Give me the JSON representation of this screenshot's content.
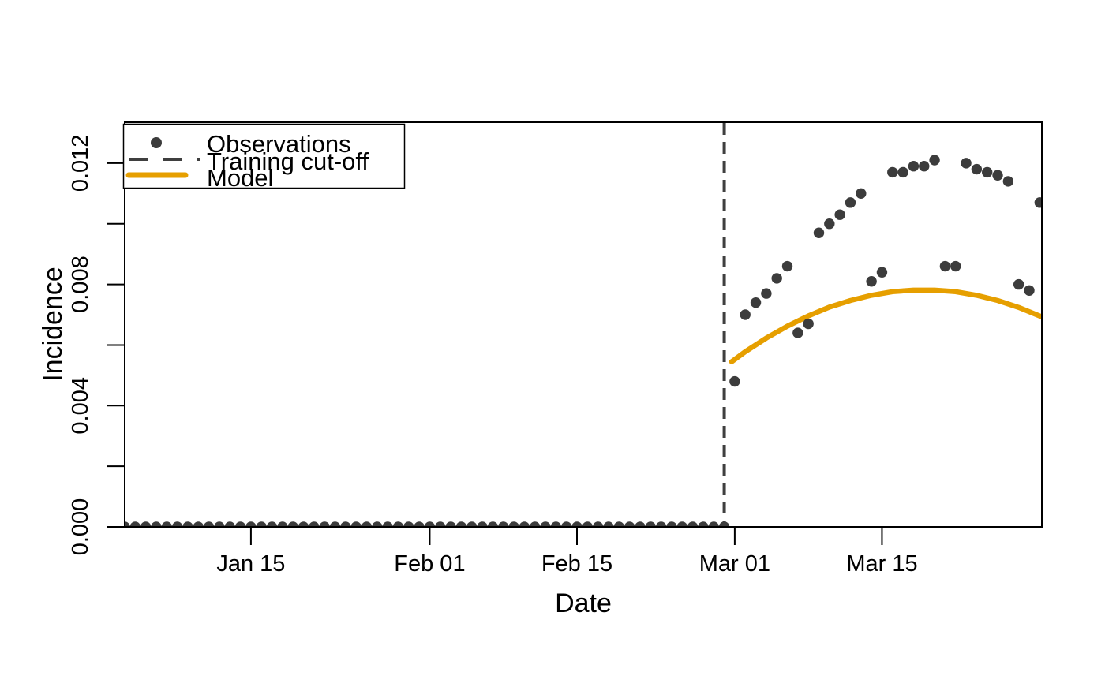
{
  "figure": {
    "background": "#FFFFFF",
    "text_color": "#000000"
  },
  "chart_data": {
    "type": "scatter",
    "title": "",
    "xlabel": "Date",
    "ylabel": "Incidence",
    "grid": false,
    "legend_position": "top-left",
    "day_numbering": "day of year, leap year (Feb 29 = day 60)",
    "xlim_days": [
      3,
      90.2
    ],
    "ylim": [
      0,
      0.01335
    ],
    "x_ticks": [
      {
        "label": "Jan 15",
        "day": 15
      },
      {
        "label": "Feb 01",
        "day": 32
      },
      {
        "label": "Feb 15",
        "day": 46
      },
      {
        "label": "Mar 01",
        "day": 61
      },
      {
        "label": "Mar 15",
        "day": 75
      }
    ],
    "y_ticks": [
      {
        "label": "0.000",
        "value": 0.0
      },
      {
        "label": "",
        "value": 0.002
      },
      {
        "label": "0.004",
        "value": 0.004
      },
      {
        "label": "",
        "value": 0.006
      },
      {
        "label": "0.008",
        "value": 0.008
      },
      {
        "label": "",
        "value": 0.01
      },
      {
        "label": "0.012",
        "value": 0.012
      }
    ],
    "legend": {
      "items": [
        {
          "label": "Observations",
          "marker": "point",
          "color": "#3C3C3C"
        },
        {
          "label": "Training cut-off",
          "marker": "dashed-line",
          "color": "#3F3F3F"
        },
        {
          "label": "Model",
          "marker": "solid-line",
          "color": "#E69F00"
        }
      ]
    },
    "cutoff": {
      "label": "Training cut-off",
      "date": "Feb 29",
      "day": 60,
      "color": "#3F3F3F"
    },
    "observations_training": {
      "description": "daily observed incidence before the training cut-off (all ~0)",
      "color": "#3C3C3C",
      "start_date": "Jan 03",
      "start_day": 3,
      "end_date": "Feb 29",
      "end_day": 60,
      "daily_value": 0.0
    },
    "observations_forecast_period": {
      "description": "daily observed incidence after the training cut-off",
      "color": "#3C3C3C",
      "points": [
        {
          "date": "Mar 01",
          "day": 61,
          "value": 0.0048
        },
        {
          "date": "Mar 02",
          "day": 62,
          "value": 0.007
        },
        {
          "date": "Mar 03",
          "day": 63,
          "value": 0.0074
        },
        {
          "date": "Mar 04",
          "day": 64,
          "value": 0.0077
        },
        {
          "date": "Mar 05",
          "day": 65,
          "value": 0.0082
        },
        {
          "date": "Mar 06",
          "day": 66,
          "value": 0.0086
        },
        {
          "date": "Mar 07",
          "day": 67,
          "value": 0.0064
        },
        {
          "date": "Mar 08",
          "day": 68,
          "value": 0.0067
        },
        {
          "date": "Mar 09",
          "day": 69,
          "value": 0.0097
        },
        {
          "date": "Mar 10",
          "day": 70,
          "value": 0.01
        },
        {
          "date": "Mar 11",
          "day": 71,
          "value": 0.0103
        },
        {
          "date": "Mar 12",
          "day": 72,
          "value": 0.0107
        },
        {
          "date": "Mar 13",
          "day": 73,
          "value": 0.011
        },
        {
          "date": "Mar 14",
          "day": 74,
          "value": 0.0081
        },
        {
          "date": "Mar 15",
          "day": 75,
          "value": 0.0084
        },
        {
          "date": "Mar 16",
          "day": 76,
          "value": 0.0117
        },
        {
          "date": "Mar 17",
          "day": 77,
          "value": 0.0117
        },
        {
          "date": "Mar 18",
          "day": 78,
          "value": 0.0119
        },
        {
          "date": "Mar 19",
          "day": 79,
          "value": 0.0119
        },
        {
          "date": "Mar 20",
          "day": 80,
          "value": 0.0121
        },
        {
          "date": "Mar 21",
          "day": 81,
          "value": 0.0086
        },
        {
          "date": "Mar 22",
          "day": 82,
          "value": 0.0086
        },
        {
          "date": "Mar 23",
          "day": 83,
          "value": 0.012
        },
        {
          "date": "Mar 24",
          "day": 84,
          "value": 0.0118
        },
        {
          "date": "Mar 25",
          "day": 85,
          "value": 0.0117
        },
        {
          "date": "Mar 26",
          "day": 86,
          "value": 0.0116
        },
        {
          "date": "Mar 27",
          "day": 87,
          "value": 0.0114
        },
        {
          "date": "Mar 28",
          "day": 88,
          "value": 0.008
        },
        {
          "date": "Mar 29",
          "day": 89,
          "value": 0.0078
        },
        {
          "date": "Mar 30",
          "day": 90,
          "value": 0.0107
        }
      ]
    },
    "model": {
      "label": "Model",
      "color": "#E69F00",
      "description": "smooth fitted/forecast incidence curve peaking ~0.0078 around Mar 19",
      "points": [
        [
          60.7,
          0.00545
        ],
        [
          62,
          0.00578
        ],
        [
          64,
          0.00623
        ],
        [
          66,
          0.00662
        ],
        [
          68,
          0.00696
        ],
        [
          70,
          0.00725
        ],
        [
          72,
          0.00747
        ],
        [
          74,
          0.00764
        ],
        [
          76,
          0.00776
        ],
        [
          78,
          0.00781
        ],
        [
          80,
          0.00781
        ],
        [
          82,
          0.00776
        ],
        [
          84,
          0.00764
        ],
        [
          86,
          0.00747
        ],
        [
          88,
          0.00724
        ],
        [
          90.2,
          0.00693
        ]
      ]
    }
  }
}
